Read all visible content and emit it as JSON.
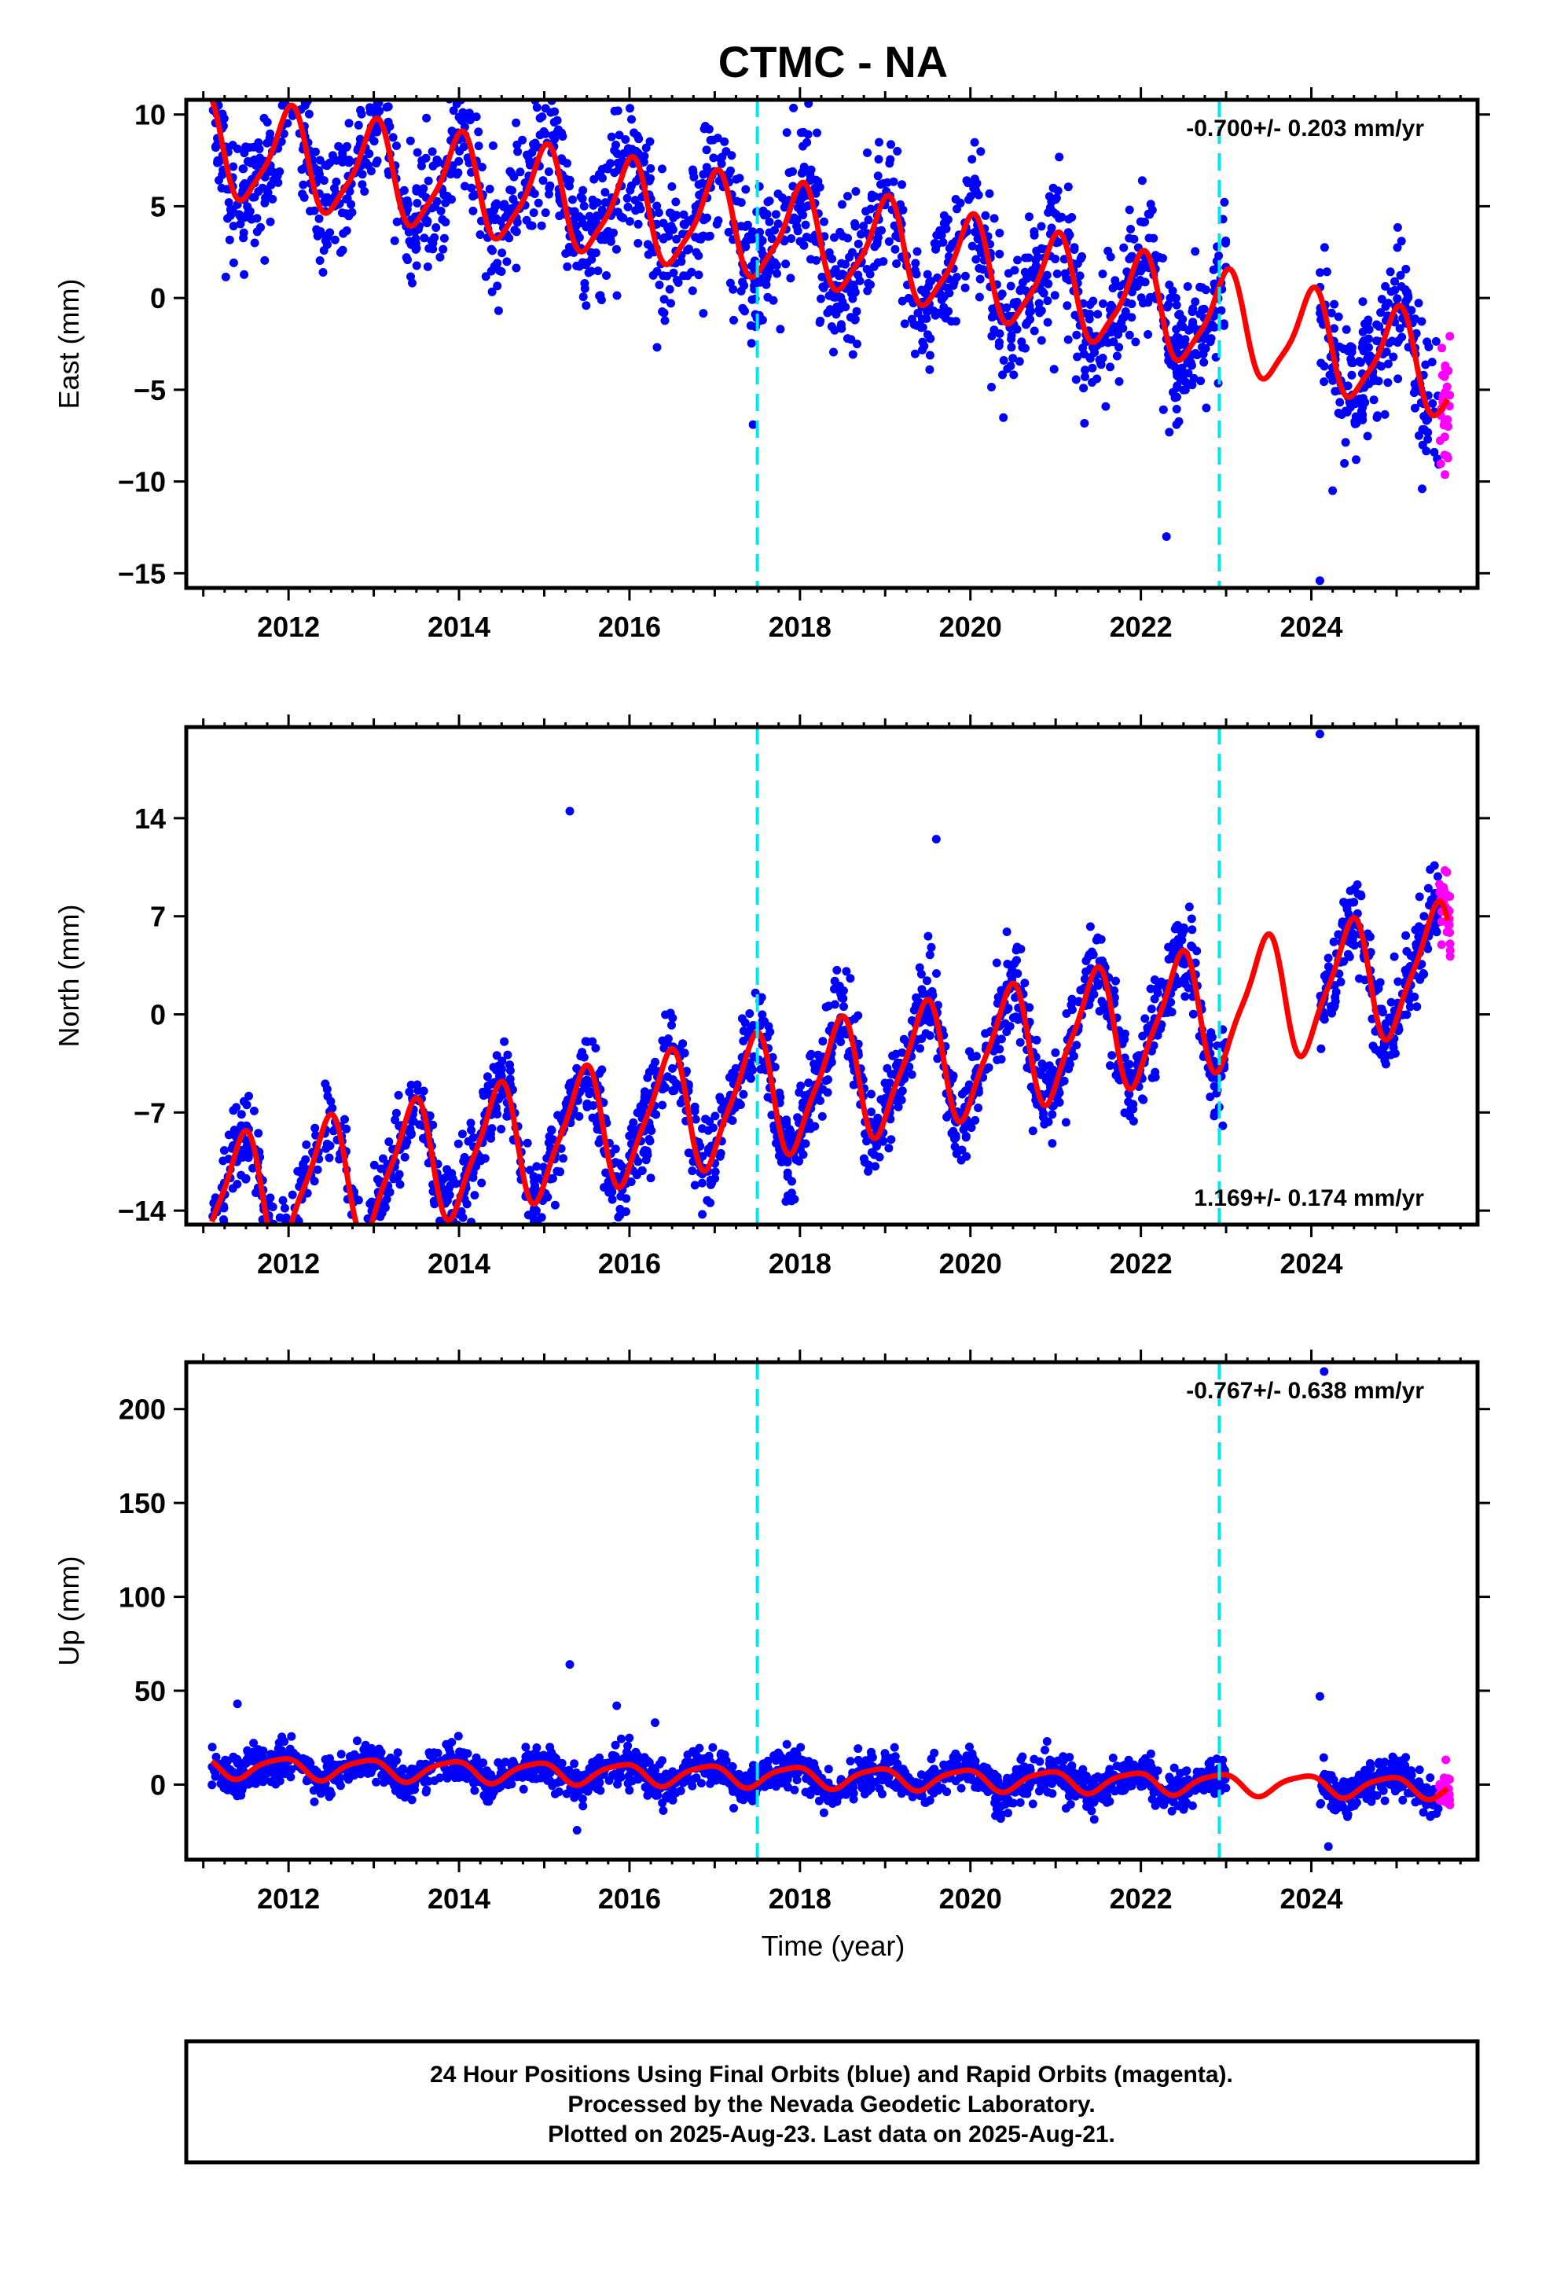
{
  "title": "CTMC - NA",
  "xlabel": "Time (year)",
  "caption": [
    "24 Hour Positions Using Final Orbits (blue) and Rapid Orbits (magenta).",
    "Processed by the Nevada Geodetic Laboratory.",
    "Plotted on 2025-Aug-23. Last data on 2025-Aug-21."
  ],
  "colors": {
    "final_orbits": "#0000ff",
    "rapid_orbits": "#ff00ff",
    "model": "#ff0000",
    "steps": "#00e5ee",
    "frame": "#000000"
  },
  "chart_data": [
    {
      "type": "scatter",
      "ylabel": "East (mm)",
      "rate": "-0.700+/- 0.203 mm/yr",
      "rate_position": "top-right",
      "xlim": [
        2010.8,
        2025.95
      ],
      "ylim": [
        -15.8,
        10.8
      ],
      "x_ticks": [
        2012,
        2014,
        2016,
        2018,
        2020,
        2022,
        2024
      ],
      "y_ticks": [
        -15,
        -10,
        -5,
        0,
        5,
        10
      ],
      "y_tick_labels": [
        "−15",
        "−10",
        "−5",
        "0",
        "5",
        "10"
      ],
      "steps": [
        2017.5,
        2022.92
      ],
      "gap": [
        2023.0,
        2024.1
      ],
      "model": {
        "start": 2011.1,
        "end": 2025.6,
        "offset": 4.0,
        "trend": -0.7,
        "trend_change_year": 2019.0,
        "trend_after": -1.0,
        "annual_amp": 2.6,
        "annual_phase": 1.57,
        "semiannual_amp": 0.6,
        "semiannual_phase": 0.5,
        "noise": 1.8
      },
      "series": [
        {
          "name": "Final Orbits",
          "color": "#0000ff",
          "samples": 2200
        },
        {
          "name": "Rapid Orbits",
          "color": "#ff00ff",
          "start": 2025.5,
          "end": 2025.63,
          "samples": 30
        }
      ],
      "outliers": [
        [
          2014.4,
          8.3
        ],
        [
          2014.95,
          9.8
        ],
        [
          2017.45,
          -6.9
        ],
        [
          2018.1,
          10.6
        ],
        [
          2018.2,
          9.0
        ],
        [
          2022.3,
          -13.0
        ],
        [
          2024.1,
          -15.4
        ],
        [
          2024.25,
          -10.5
        ],
        [
          2025.3,
          -10.4
        ]
      ]
    },
    {
      "type": "scatter",
      "ylabel": "North (mm)",
      "rate": "1.169+/- 0.174 mm/yr",
      "rate_position": "bottom-right",
      "xlim": [
        2010.8,
        2025.95
      ],
      "ylim": [
        -15.0,
        20.5
      ],
      "x_ticks": [
        2012,
        2014,
        2016,
        2018,
        2020,
        2022,
        2024
      ],
      "y_ticks": [
        -14,
        -7,
        0,
        7,
        14
      ],
      "y_tick_labels": [
        "−14",
        "−7",
        "0",
        "7",
        "14"
      ],
      "steps": [
        2017.5,
        2022.92
      ],
      "gap": [
        2023.0,
        2024.1
      ],
      "model": {
        "start": 2011.1,
        "end": 2025.6,
        "offset": -6.5,
        "trend": 1.169,
        "annual_amp": 4.2,
        "annual_phase": -1.2,
        "semiannual_amp": 1.0,
        "semiannual_phase": 0.8,
        "noise": 1.5
      },
      "series": [
        {
          "name": "Final Orbits",
          "color": "#0000ff",
          "samples": 2200
        },
        {
          "name": "Rapid Orbits",
          "color": "#ff00ff",
          "start": 2025.5,
          "end": 2025.63,
          "samples": 30
        }
      ],
      "outliers": [
        [
          2015.3,
          14.5
        ],
        [
          2019.6,
          12.5
        ],
        [
          2024.1,
          20.0
        ],
        [
          2024.75,
          -2.5
        ],
        [
          2011.9,
          -14.5
        ],
        [
          2016.1,
          -10.5
        ]
      ]
    },
    {
      "type": "scatter",
      "ylabel": "Up (mm)",
      "rate": "-0.767+/- 0.638 mm/yr",
      "rate_position": "top-right",
      "xlim": [
        2010.8,
        2025.95
      ],
      "ylim": [
        -40,
        225
      ],
      "x_ticks": [
        2012,
        2014,
        2016,
        2018,
        2020,
        2022,
        2024
      ],
      "y_ticks": [
        0,
        50,
        100,
        150,
        200
      ],
      "y_tick_labels": [
        "0",
        "50",
        "100",
        "150",
        "200"
      ],
      "steps": [
        2017.5,
        2022.92
      ],
      "gap": [
        2023.0,
        2024.1
      ],
      "model": {
        "start": 2011.1,
        "end": 2025.6,
        "offset": 5.0,
        "trend": -0.767,
        "annual_amp": 5.5,
        "annual_phase": 2.2,
        "semiannual_amp": 1.2,
        "semiannual_phase": 0.3,
        "noise": 5.0
      },
      "series": [
        {
          "name": "Final Orbits",
          "color": "#0000ff",
          "samples": 2200
        },
        {
          "name": "Rapid Orbits",
          "color": "#ff00ff",
          "start": 2025.5,
          "end": 2025.63,
          "samples": 30
        }
      ],
      "outliers": [
        [
          2011.4,
          43
        ],
        [
          2015.3,
          64
        ],
        [
          2015.85,
          42
        ],
        [
          2016.3,
          33
        ],
        [
          2020.9,
          23
        ],
        [
          2024.1,
          47
        ],
        [
          2024.15,
          220
        ],
        [
          2024.2,
          -33
        ]
      ]
    }
  ]
}
